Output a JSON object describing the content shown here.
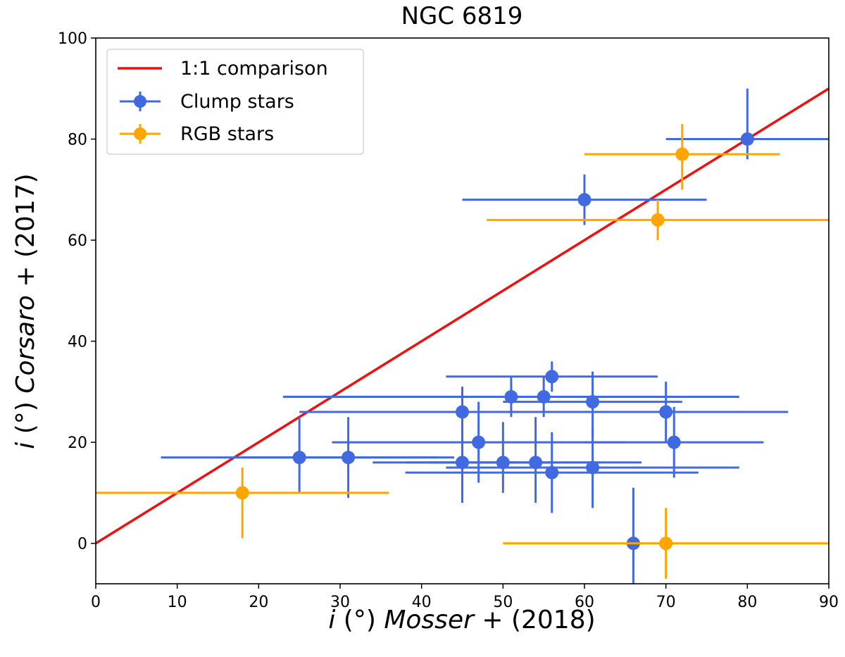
{
  "chart_data": {
    "type": "scatter",
    "title": "NGC 6819",
    "xlabel": {
      "var": "i",
      "unit": "(°)",
      "author": "Mosser",
      "suffix": "+ (2018)"
    },
    "ylabel": {
      "var": "i",
      "unit": "(°)",
      "author": "Corsaro",
      "suffix": "+ (2017)"
    },
    "xlim": [
      0,
      90
    ],
    "ylim": [
      -8,
      100
    ],
    "xticks": [
      0,
      10,
      20,
      30,
      40,
      50,
      60,
      70,
      80,
      90
    ],
    "yticks": [
      0,
      20,
      40,
      60,
      80,
      100
    ],
    "grid": false,
    "legend_position": "top-left",
    "line": {
      "name": "1:1 comparison",
      "color": "#ee1111",
      "points": [
        [
          0,
          0
        ],
        [
          90,
          90
        ]
      ]
    },
    "series": [
      {
        "name": "Clump stars",
        "color": "#4169e1",
        "points": [
          {
            "x": 80,
            "y": 80,
            "xlo": 70,
            "xhi": 90,
            "ylo": 76,
            "yhi": 90
          },
          {
            "x": 60,
            "y": 68,
            "xlo": 45,
            "xhi": 75,
            "ylo": 63,
            "yhi": 73
          },
          {
            "x": 56,
            "y": 33,
            "xlo": 43,
            "xhi": 69,
            "ylo": 30,
            "yhi": 36
          },
          {
            "x": 51,
            "y": 29,
            "xlo": 23,
            "xhi": 79,
            "ylo": 25,
            "yhi": 33
          },
          {
            "x": 55,
            "y": 29,
            "xlo": 49,
            "xhi": 73,
            "ylo": 25,
            "yhi": 33
          },
          {
            "x": 61,
            "y": 28,
            "xlo": 50,
            "xhi": 72,
            "ylo": 21,
            "yhi": 34
          },
          {
            "x": 45,
            "y": 26,
            "xlo": 25,
            "xhi": 65,
            "ylo": 21,
            "yhi": 31
          },
          {
            "x": 70,
            "y": 26,
            "xlo": 55,
            "xhi": 85,
            "ylo": 20,
            "yhi": 32
          },
          {
            "x": 47,
            "y": 20,
            "xlo": 29,
            "xhi": 65,
            "ylo": 12,
            "yhi": 28
          },
          {
            "x": 71,
            "y": 20,
            "xlo": 60,
            "xhi": 82,
            "ylo": 13,
            "yhi": 27
          },
          {
            "x": 25,
            "y": 17,
            "xlo": 8,
            "xhi": 42,
            "ylo": 10,
            "yhi": 25
          },
          {
            "x": 31,
            "y": 17,
            "xlo": 18,
            "xhi": 44,
            "ylo": 9,
            "yhi": 25
          },
          {
            "x": 45,
            "y": 16,
            "xlo": 34,
            "xhi": 56,
            "ylo": 8,
            "yhi": 24
          },
          {
            "x": 50,
            "y": 16,
            "xlo": 38,
            "xhi": 62,
            "ylo": 10,
            "yhi": 24
          },
          {
            "x": 54,
            "y": 16,
            "xlo": 41,
            "xhi": 67,
            "ylo": 8,
            "yhi": 25
          },
          {
            "x": 61,
            "y": 15,
            "xlo": 43,
            "xhi": 79,
            "ylo": 7,
            "yhi": 23
          },
          {
            "x": 56,
            "y": 14,
            "xlo": 38,
            "xhi": 74,
            "ylo": 6,
            "yhi": 22
          },
          {
            "x": 66,
            "y": 0,
            "xlo": 66,
            "xhi": 66,
            "ylo": -8,
            "yhi": 11
          }
        ]
      },
      {
        "name": "RGB stars",
        "color": "#ffa500",
        "points": [
          {
            "x": 72,
            "y": 77,
            "xlo": 60,
            "xhi": 84,
            "ylo": 70,
            "yhi": 83
          },
          {
            "x": 69,
            "y": 64,
            "xlo": 48,
            "xhi": 90,
            "ylo": 60,
            "yhi": 68
          },
          {
            "x": 18,
            "y": 10,
            "xlo": 0,
            "xhi": 36,
            "ylo": 1,
            "yhi": 15
          },
          {
            "x": 70,
            "y": 0,
            "xlo": 50,
            "xhi": 90,
            "ylo": -7,
            "yhi": 7
          }
        ]
      }
    ]
  }
}
